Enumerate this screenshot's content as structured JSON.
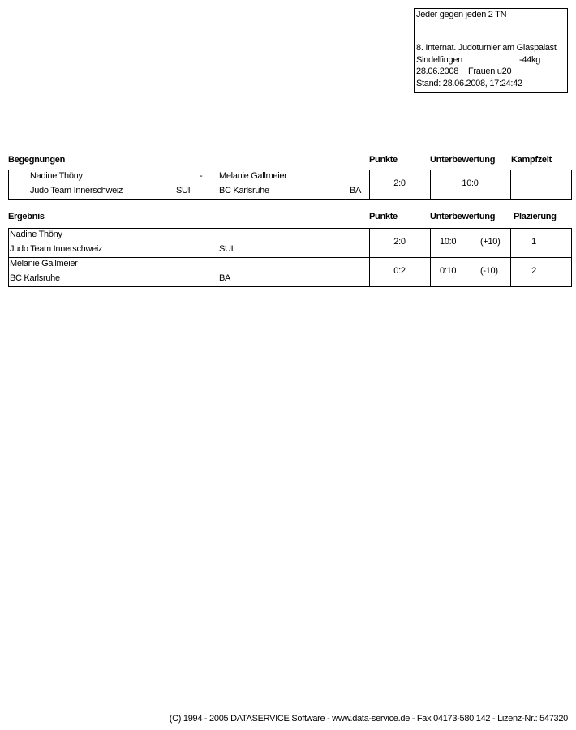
{
  "header_box": {
    "title": "Jeder gegen jeden 2 TN",
    "event": "8. Internat. Judoturnier am Glaspalast",
    "location": "Sindelfingen",
    "weight": "-44kg",
    "date": "28.06.2008",
    "category": "Frauen u20",
    "stand": "Stand: 28.06.2008, 17:24:42"
  },
  "begegnungen": {
    "heading": "Begegnungen",
    "col_punkte": "Punkte",
    "col_unterbewertung": "Unterbewertung",
    "col_kampfzeit": "Kampfzeit",
    "match": {
      "fighter1": "Nadine Thöny",
      "club1": "Judo Team Innerschweiz",
      "nation1": "SUI",
      "separator": "-",
      "fighter2": "Melanie Gallmeier",
      "club2": "BC Karlsruhe",
      "nation2": "BA",
      "punkte": "2:0",
      "unterbewertung": "10:0",
      "kampfzeit": ""
    }
  },
  "ergebnis": {
    "heading": "Ergebnis",
    "col_punkte": "Punkte",
    "col_unterbewertung": "Unterbewertung",
    "col_plazierung": "Plazierung",
    "rows": [
      {
        "name": "Nadine Thöny",
        "club": "Judo Team Innerschweiz",
        "nation": "SUI",
        "punkte": "2:0",
        "unterbewertung": "10:0",
        "diff": "(+10)",
        "platz": "1"
      },
      {
        "name": "Melanie Gallmeier",
        "club": "BC Karlsruhe",
        "nation": "BA",
        "punkte": "0:2",
        "unterbewertung": "0:10",
        "diff": "(-10)",
        "platz": "2"
      }
    ]
  },
  "footer": "(C) 1994 - 2005 DATASERVICE Software - www.data-service.de - Fax 04173-580 142 - Lizenz-Nr.: 547320"
}
